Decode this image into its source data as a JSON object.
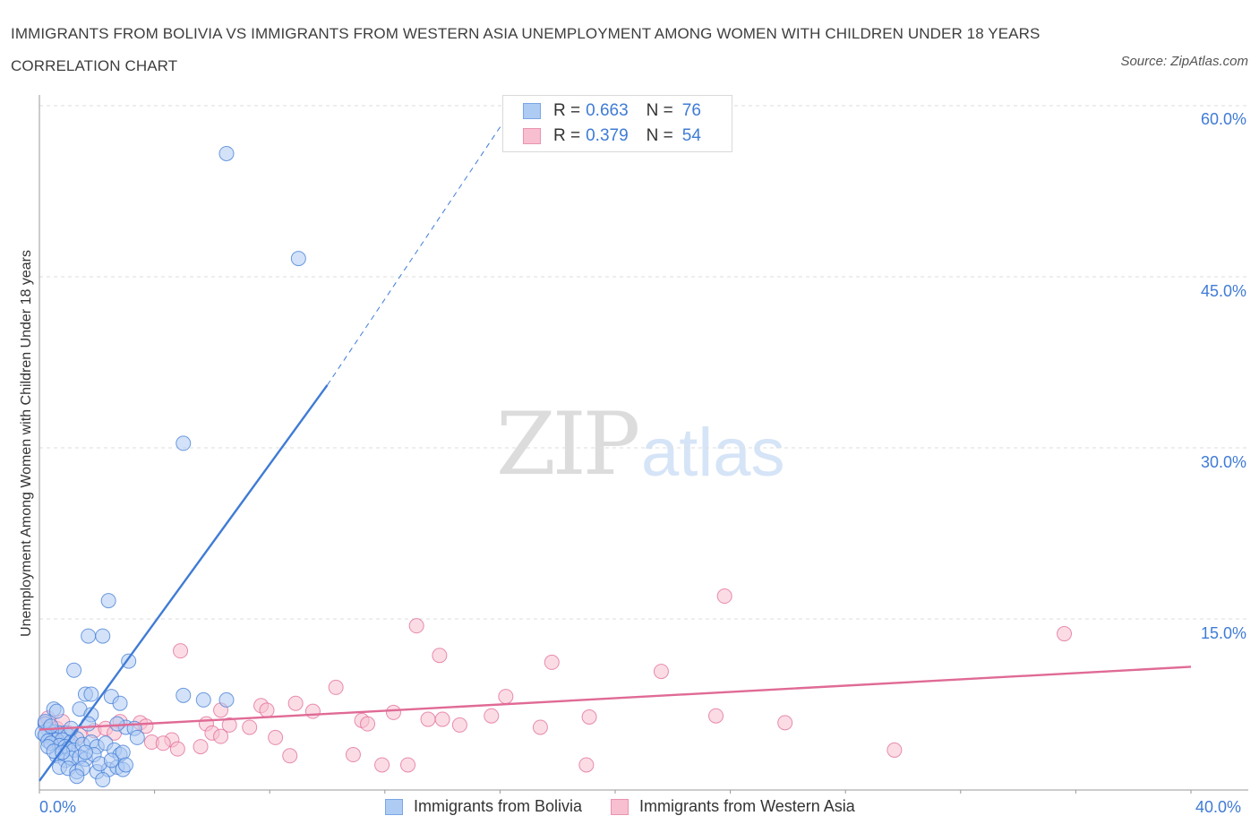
{
  "title": "IMMIGRANTS FROM BOLIVIA VS IMMIGRANTS FROM WESTERN ASIA UNEMPLOYMENT AMONG WOMEN WITH CHILDREN UNDER 18 YEARS CORRELATION CHART",
  "source": "Source: ZipAtlas.com",
  "watermark": {
    "zip": "ZIP",
    "atlas": "atlas"
  },
  "colors": {
    "blue": "#3f7bd6",
    "blue_fill": "#aecbf3",
    "pink": "#e06a95",
    "pink_fill": "#f7bfd0",
    "grid": "#dedede"
  },
  "legend": {
    "rows": [
      {
        "r_label": "R = ",
        "r": "0.663",
        "n_label": "N = ",
        "n": "76"
      },
      {
        "r_label": "R = ",
        "r": "0.379",
        "n_label": "N = ",
        "n": "54"
      }
    ]
  },
  "chart_data": {
    "type": "scatter",
    "ylabel": "Unemployment Among Women with Children Under 18 years",
    "xlim": [
      0,
      40
    ],
    "ylim": [
      0,
      60
    ],
    "x_tick_labels": [
      "0.0%",
      "40.0%"
    ],
    "y_ticks": [
      15,
      30,
      45,
      60
    ],
    "y_tick_labels": [
      "15.0%",
      "30.0%",
      "45.0%",
      "60.0%"
    ],
    "grid": true,
    "legend_position": "top-center",
    "series": [
      {
        "name": "Immigrants from Bolivia",
        "color": "#3f7bd6",
        "R": 0.663,
        "N": 76,
        "trend": {
          "x0": 0,
          "y0": 0.8,
          "x1": 10.0,
          "y1": 35.5,
          "dashed_to_x": 16.5,
          "dashed_to_y": 60.0
        },
        "points": [
          [
            6.5,
            55.8
          ],
          [
            9.0,
            46.6
          ],
          [
            5.0,
            30.4
          ],
          [
            2.4,
            16.6
          ],
          [
            1.7,
            13.5
          ],
          [
            2.2,
            13.5
          ],
          [
            3.1,
            11.3
          ],
          [
            1.2,
            10.5
          ],
          [
            1.6,
            8.4
          ],
          [
            1.8,
            8.4
          ],
          [
            2.5,
            8.2
          ],
          [
            5.0,
            8.3
          ],
          [
            5.7,
            7.9
          ],
          [
            6.5,
            7.9
          ],
          [
            2.8,
            7.6
          ],
          [
            0.5,
            7.1
          ],
          [
            1.4,
            7.1
          ],
          [
            0.6,
            6.9
          ],
          [
            1.8,
            6.6
          ],
          [
            0.2,
            5.8
          ],
          [
            0.3,
            5.3
          ],
          [
            0.5,
            5.1
          ],
          [
            0.7,
            5.0
          ],
          [
            0.9,
            5.0
          ],
          [
            1.0,
            4.8
          ],
          [
            0.4,
            4.6
          ],
          [
            0.6,
            4.4
          ],
          [
            0.8,
            4.4
          ],
          [
            1.1,
            4.2
          ],
          [
            1.3,
            4.5
          ],
          [
            0.1,
            5.0
          ],
          [
            0.2,
            4.8
          ],
          [
            0.3,
            4.3
          ],
          [
            0.4,
            4.1
          ],
          [
            0.7,
            3.9
          ],
          [
            0.9,
            3.8
          ],
          [
            1.0,
            3.6
          ],
          [
            1.2,
            3.5
          ],
          [
            1.5,
            4.0
          ],
          [
            1.8,
            4.2
          ],
          [
            2.0,
            3.8
          ],
          [
            2.3,
            4.1
          ],
          [
            2.6,
            3.5
          ],
          [
            2.8,
            3.1
          ],
          [
            2.9,
            3.3
          ],
          [
            3.0,
            5.5
          ],
          [
            3.3,
            5.4
          ],
          [
            3.4,
            4.6
          ],
          [
            0.6,
            3.0
          ],
          [
            0.9,
            2.6
          ],
          [
            1.1,
            2.8
          ],
          [
            1.4,
            2.9
          ],
          [
            1.6,
            2.7
          ],
          [
            1.9,
            3.1
          ],
          [
            0.7,
            2.0
          ],
          [
            1.0,
            1.9
          ],
          [
            1.3,
            1.6
          ],
          [
            1.5,
            1.9
          ],
          [
            2.0,
            1.6
          ],
          [
            2.4,
            1.8
          ],
          [
            2.7,
            2.0
          ],
          [
            2.9,
            1.8
          ],
          [
            1.3,
            1.2
          ],
          [
            2.2,
            0.9
          ],
          [
            0.3,
            3.8
          ],
          [
            0.5,
            3.4
          ],
          [
            0.8,
            3.3
          ],
          [
            1.6,
            3.3
          ],
          [
            2.1,
            2.3
          ],
          [
            2.5,
            2.6
          ],
          [
            3.0,
            2.2
          ],
          [
            1.1,
            5.4
          ],
          [
            1.7,
            5.8
          ],
          [
            2.7,
            5.8
          ],
          [
            0.2,
            6.0
          ],
          [
            0.4,
            5.6
          ]
        ]
      },
      {
        "name": "Immigrants from Western Asia",
        "color": "#e06a95",
        "R": 0.379,
        "N": 54,
        "trend": {
          "x0": 0,
          "y0": 5.3,
          "x1": 40,
          "y1": 10.8
        },
        "points": [
          [
            23.8,
            17.0
          ],
          [
            35.6,
            13.7
          ],
          [
            13.1,
            14.4
          ],
          [
            13.9,
            11.8
          ],
          [
            17.8,
            11.2
          ],
          [
            21.6,
            10.4
          ],
          [
            4.9,
            12.2
          ],
          [
            10.3,
            9.0
          ],
          [
            16.2,
            8.2
          ],
          [
            8.9,
            7.6
          ],
          [
            7.7,
            7.4
          ],
          [
            7.9,
            7.0
          ],
          [
            6.3,
            7.0
          ],
          [
            9.5,
            6.9
          ],
          [
            12.3,
            6.8
          ],
          [
            15.7,
            6.5
          ],
          [
            19.1,
            6.4
          ],
          [
            23.5,
            6.5
          ],
          [
            11.2,
            6.1
          ],
          [
            13.5,
            6.2
          ],
          [
            14.0,
            6.2
          ],
          [
            25.9,
            5.9
          ],
          [
            11.4,
            5.8
          ],
          [
            14.6,
            5.7
          ],
          [
            17.4,
            5.5
          ],
          [
            5.8,
            5.8
          ],
          [
            6.6,
            5.7
          ],
          [
            7.3,
            5.5
          ],
          [
            2.8,
            6.0
          ],
          [
            3.5,
            5.9
          ],
          [
            3.7,
            5.6
          ],
          [
            1.9,
            5.2
          ],
          [
            2.3,
            5.4
          ],
          [
            2.6,
            5.0
          ],
          [
            0.2,
            5.8
          ],
          [
            0.6,
            5.4
          ],
          [
            1.0,
            5.0
          ],
          [
            1.4,
            4.8
          ],
          [
            6.0,
            5.0
          ],
          [
            6.3,
            4.7
          ],
          [
            8.2,
            4.6
          ],
          [
            4.6,
            4.4
          ],
          [
            3.9,
            4.2
          ],
          [
            4.3,
            4.1
          ],
          [
            5.6,
            3.8
          ],
          [
            4.8,
            3.6
          ],
          [
            8.7,
            3.0
          ],
          [
            10.9,
            3.1
          ],
          [
            11.9,
            2.2
          ],
          [
            12.8,
            2.2
          ],
          [
            19.0,
            2.2
          ],
          [
            29.7,
            3.5
          ],
          [
            0.3,
            6.3
          ],
          [
            0.8,
            6.0
          ]
        ]
      }
    ]
  }
}
